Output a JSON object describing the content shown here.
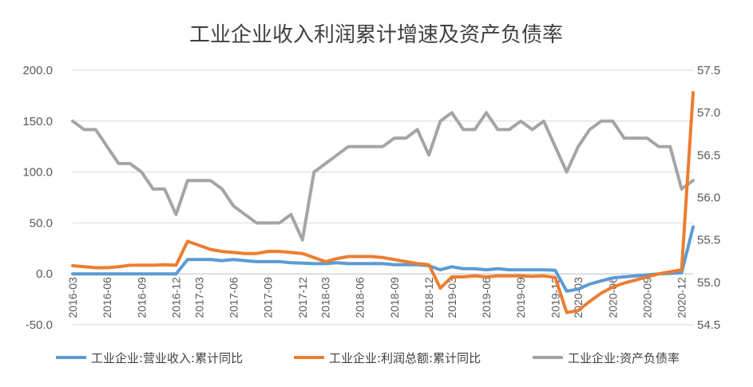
{
  "chart_data": {
    "type": "line",
    "title": "工业企业收入利润累计增速及资产负债率",
    "x": [
      "2016-03",
      "2016-04",
      "2016-05",
      "2016-06",
      "2016-07",
      "2016-08",
      "2016-09",
      "2016-10",
      "2016-11",
      "2016-12",
      "2017-02",
      "2017-03",
      "2017-04",
      "2017-05",
      "2017-06",
      "2017-07",
      "2017-08",
      "2017-09",
      "2017-10",
      "2017-11",
      "2017-12",
      "2018-02",
      "2018-03",
      "2018-04",
      "2018-05",
      "2018-06",
      "2018-07",
      "2018-08",
      "2018-09",
      "2018-10",
      "2018-11",
      "2018-12",
      "2019-02",
      "2019-03",
      "2019-04",
      "2019-05",
      "2019-06",
      "2019-07",
      "2019-08",
      "2019-09",
      "2019-10",
      "2019-11",
      "2019-12",
      "2020-02",
      "2020-03",
      "2020-04",
      "2020-05",
      "2020-06",
      "2020-07",
      "2020-08",
      "2020-09",
      "2020-10",
      "2020-11",
      "2020-12",
      "2021-02"
    ],
    "xtick_labels": [
      "2016-03",
      "2016-06",
      "2016-09",
      "2016-12",
      "2017-03",
      "2017-06",
      "2017-09",
      "2017-12",
      "2018-03",
      "2018-06",
      "2018-09",
      "2018-12",
      "2019-03",
      "2019-06",
      "2019-09",
      "2019-12",
      "2020-03",
      "2020-06",
      "2020-09",
      "2020-12"
    ],
    "xtick_indices": [
      0,
      3,
      6,
      9,
      11,
      14,
      17,
      20,
      22,
      25,
      28,
      31,
      33,
      36,
      39,
      42,
      44,
      47,
      50,
      53
    ],
    "y_left": {
      "ylim": [
        -50,
        200
      ],
      "ticks": [
        "-50.0",
        "0.0",
        "50.0",
        "100.0",
        "150.0",
        "200.0"
      ],
      "tick_values": [
        -50,
        0,
        50,
        100,
        150,
        200
      ]
    },
    "y_right": {
      "ylim": [
        54.5,
        57.5
      ],
      "ticks": [
        "54.5",
        "55.0",
        "55.5",
        "56.0",
        "56.5",
        "57.0",
        "57.5"
      ],
      "tick_values": [
        54.5,
        55,
        55.5,
        56,
        56.5,
        57,
        57.5
      ]
    },
    "series": [
      {
        "name": "工业企业:营业收入:累计同比",
        "axis": "left",
        "color": "#5B9BD5",
        "values": [
          0,
          0,
          0,
          0,
          0,
          0,
          0,
          0,
          0,
          0,
          14,
          14,
          14,
          13,
          14,
          13,
          12,
          12,
          12,
          11,
          10.5,
          10,
          10,
          11,
          10,
          10,
          10,
          10,
          9,
          9,
          9,
          8,
          4,
          7,
          5,
          5,
          4,
          5,
          4,
          4,
          4,
          4,
          3.5,
          -17,
          -15,
          -10,
          -7,
          -4,
          -3,
          -2,
          -1,
          0,
          0.5,
          1,
          46
        ]
      },
      {
        "name": "工业企业:利润总额:累计同比",
        "axis": "left",
        "color": "#ED7D31",
        "values": [
          8,
          7,
          6,
          6,
          7,
          8.5,
          8.5,
          8.5,
          9,
          8.5,
          32,
          28,
          24,
          22,
          21,
          20,
          20,
          22,
          22,
          21,
          20,
          16,
          12,
          15,
          17,
          17,
          17,
          16,
          14,
          12,
          10,
          9,
          -14,
          -3,
          -3,
          -2,
          -3,
          -2,
          -2,
          -2,
          -2.5,
          -2,
          -3.5,
          -38,
          -36,
          -27,
          -19,
          -13,
          -9,
          -6,
          -3,
          0,
          2,
          4,
          178
        ]
      },
      {
        "name": "工业企业:资产负债率",
        "axis": "right",
        "color": "#A5A5A5",
        "values": [
          56.9,
          56.8,
          56.8,
          56.6,
          56.4,
          56.4,
          56.3,
          56.1,
          56.1,
          55.8,
          56.2,
          56.2,
          56.2,
          56.1,
          55.9,
          55.8,
          55.7,
          55.7,
          55.7,
          55.8,
          55.5,
          56.3,
          56.4,
          56.5,
          56.6,
          56.6,
          56.6,
          56.6,
          56.7,
          56.7,
          56.8,
          56.5,
          56.9,
          57.0,
          56.8,
          56.8,
          57.0,
          56.8,
          56.8,
          56.9,
          56.8,
          56.9,
          56.6,
          56.3,
          56.6,
          56.8,
          56.9,
          56.9,
          56.7,
          56.7,
          56.7,
          56.6,
          56.6,
          56.1,
          56.2
        ]
      }
    ],
    "legend_placement": "bottom",
    "grid": true
  }
}
